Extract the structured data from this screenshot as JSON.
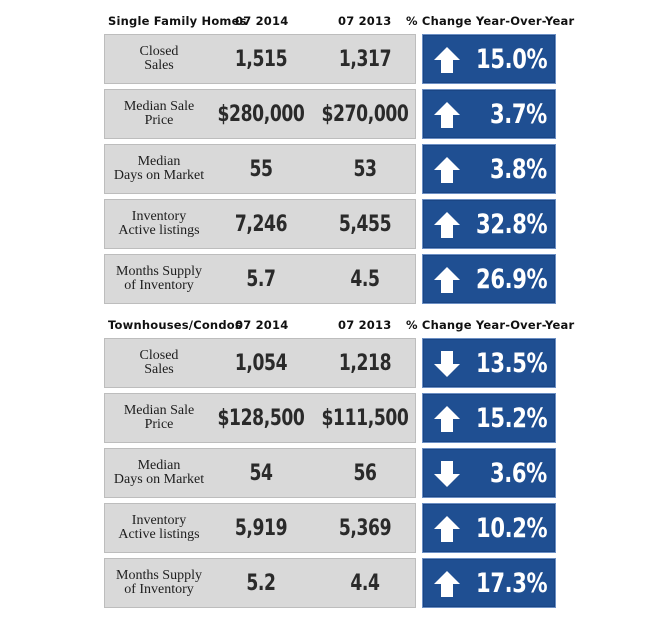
{
  "sections": [
    {
      "category": "Single Family Homes",
      "year1": "07 2014",
      "year2": "07 2013",
      "change_header": "% Change Year-Over-Year",
      "rows": [
        {
          "label_line1": "Closed",
          "label_line2": "Sales",
          "v2014": "1,515",
          "v2013": "1,317",
          "direction": "up",
          "change": "15.0%"
        },
        {
          "label_line1": "Median Sale",
          "label_line2": "Price",
          "v2014": "$280,000",
          "v2013": "$270,000",
          "direction": "up",
          "change": "3.7%"
        },
        {
          "label_line1": "Median",
          "label_line2": "Days on Market",
          "v2014": "55",
          "v2013": "53",
          "direction": "up",
          "change": "3.8%"
        },
        {
          "label_line1": "Inventory",
          "label_line2": "Active listings",
          "v2014": "7,246",
          "v2013": "5,455",
          "direction": "up",
          "change": "32.8%"
        },
        {
          "label_line1": "Months Supply",
          "label_line2": "of Inventory",
          "v2014": "5.7",
          "v2013": "4.5",
          "direction": "up",
          "change": "26.9%"
        }
      ]
    },
    {
      "category": "Townhouses/Condos",
      "year1": "07 2014",
      "year2": "07 2013",
      "change_header": "% Change Year-Over-Year",
      "rows": [
        {
          "label_line1": "Closed",
          "label_line2": "Sales",
          "v2014": "1,054",
          "v2013": "1,218",
          "direction": "down",
          "change": "13.5%"
        },
        {
          "label_line1": "Median Sale",
          "label_line2": "Price",
          "v2014": "$128,500",
          "v2013": "$111,500",
          "direction": "up",
          "change": "15.2%"
        },
        {
          "label_line1": "Median",
          "label_line2": "Days on Market",
          "v2014": "54",
          "v2013": "56",
          "direction": "down",
          "change": "3.6%"
        },
        {
          "label_line1": "Inventory",
          "label_line2": "Active listings",
          "v2014": "5,919",
          "v2013": "5,369",
          "direction": "up",
          "change": "10.2%"
        },
        {
          "label_line1": "Months Supply",
          "label_line2": "of Inventory",
          "v2014": "5.2",
          "v2013": "4.4",
          "direction": "up",
          "change": "17.3%"
        }
      ]
    }
  ],
  "colors": {
    "panel": "#d9d9d9",
    "change_box": "#1f4f92",
    "arrow": "#ffffff"
  }
}
